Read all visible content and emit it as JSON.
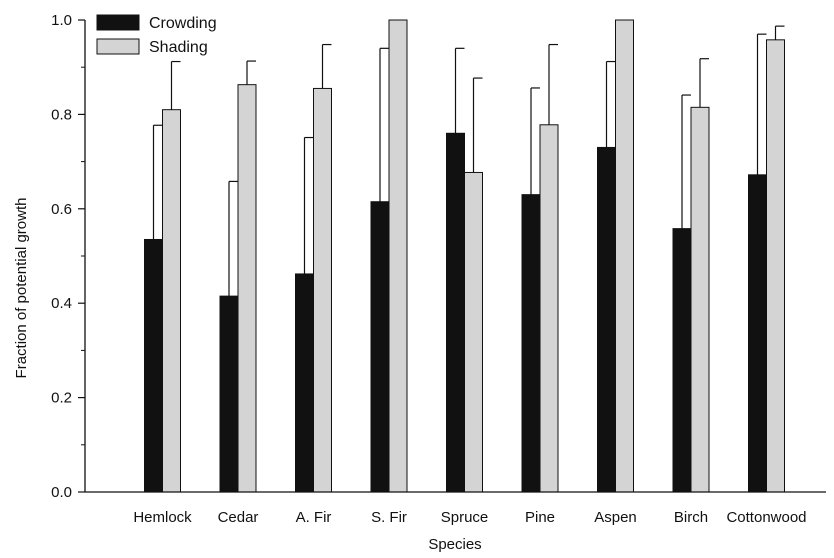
{
  "chart_data": {
    "type": "bar",
    "title": "",
    "xlabel": "Species",
    "ylabel": "Fraction of potential growth",
    "categories": [
      "Hemlock",
      "Cedar",
      "A. Fir",
      "S. Fir",
      "Spruce",
      "Pine",
      "Aspen",
      "Birch",
      "Cottonwood"
    ],
    "series": [
      {
        "name": "Crowding",
        "color": "#111111",
        "values": [
          0.535,
          0.415,
          0.462,
          0.615,
          0.76,
          0.63,
          0.73,
          0.558,
          0.672
        ],
        "error_upper": [
          0.777,
          0.658,
          0.751,
          0.94,
          0.94,
          0.856,
          0.912,
          0.841,
          0.97
        ]
      },
      {
        "name": "Shading",
        "color": "#d4d4d4",
        "values": [
          0.81,
          0.863,
          0.855,
          1.0,
          0.677,
          0.778,
          1.0,
          0.815,
          0.958
        ],
        "error_upper": [
          0.912,
          0.913,
          0.948,
          null,
          0.877,
          0.948,
          null,
          0.918,
          0.987
        ]
      }
    ],
    "ylim": [
      0,
      1.0
    ],
    "yticks": [
      "0.0",
      "0.2",
      "0.4",
      "0.6",
      "0.8",
      "1.0"
    ],
    "ytick_values": [
      0,
      0.2,
      0.4,
      0.6,
      0.8,
      1.0
    ],
    "legend_position": "top-left",
    "grid": false
  }
}
